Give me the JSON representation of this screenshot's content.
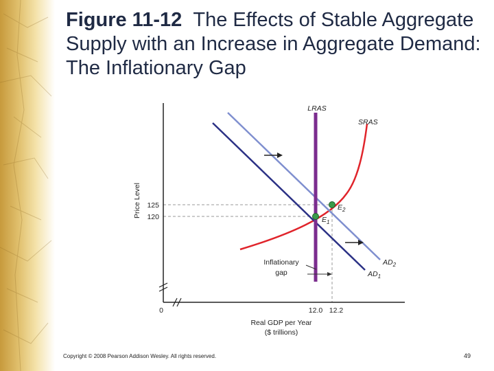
{
  "slide": {
    "title_number": "Figure 11-12",
    "title_text": "The Effects of Stable Aggregate Supply with an Increase in Aggregate Demand: The Inflationary Gap"
  },
  "graph": {
    "y_axis_label": "Price Level",
    "x_axis_label_line1": "Real GDP per Year",
    "x_axis_label_line2": "($ trillions)",
    "origin_label": "0",
    "y_ticks": [
      "125",
      "120"
    ],
    "x_ticks": [
      "12.0",
      "12.2"
    ],
    "curves": {
      "lras": "LRAS",
      "sras": "SRAS",
      "ad1_main": "AD",
      "ad1_sub": "1",
      "ad2_main": "AD",
      "ad2_sub": "2"
    },
    "points": {
      "e1_main": "E",
      "e1_sub": "1",
      "e2_main": "E",
      "e2_sub": "2"
    },
    "annotation_line1": "Inflationary",
    "annotation_line2": "gap",
    "colors": {
      "lras": "#7b2d8e",
      "sras": "#e0242b",
      "ad1": "#2b3185",
      "ad2": "#7f8fcf",
      "points": "#3a9b4a"
    }
  },
  "footer": {
    "copyright": "Copyright © 2008 Pearson Addison Wesley. All rights reserved.",
    "page_number": "49"
  }
}
